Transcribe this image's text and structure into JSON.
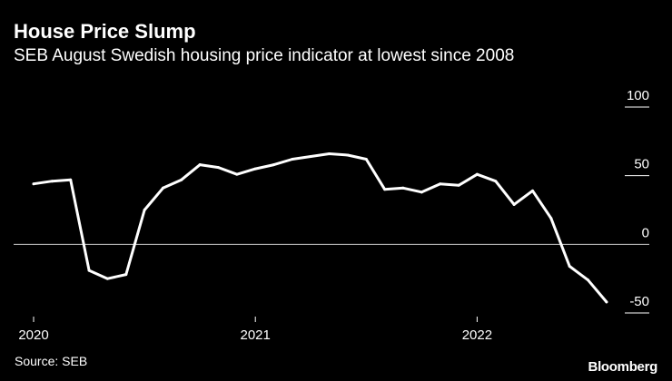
{
  "chart_data": {
    "type": "line",
    "title": "House Price Slump",
    "subtitle": "SEB August Swedish housing price indicator at lowest since 2008",
    "source": "Source: SEB",
    "brand": "Bloomberg",
    "xlabel": "",
    "ylabel": "",
    "x_ticks": [
      {
        "label": "2020",
        "value": 0
      },
      {
        "label": "2021",
        "value": 12
      },
      {
        "label": "2022",
        "value": 24
      }
    ],
    "y_ticks": [
      {
        "label": "100",
        "value": 100
      },
      {
        "label": "50",
        "value": 50
      },
      {
        "label": "0",
        "value": 0
      },
      {
        "label": "-50",
        "value": -50
      }
    ],
    "ylim": [
      -50,
      100
    ],
    "grid": true,
    "line_color": "#ffffff",
    "grid_color": "#ffffff",
    "zero_line_color": "#cccccc",
    "series": [
      {
        "name": "",
        "x": [
          0,
          1,
          2,
          3,
          4,
          5,
          6,
          7,
          8,
          9,
          10,
          11,
          12,
          13,
          14,
          15,
          16,
          17,
          18,
          19,
          20,
          21,
          22,
          23,
          24,
          25,
          26,
          27,
          28,
          29,
          30,
          31
        ],
        "values": [
          44,
          46,
          47,
          -19,
          -25,
          -22,
          25,
          41,
          47,
          58,
          56,
          51,
          55,
          58,
          62,
          64,
          66,
          65,
          62,
          40,
          41,
          38,
          44,
          43,
          51,
          46,
          29,
          39,
          19,
          -16,
          -26,
          -42
        ]
      }
    ]
  }
}
